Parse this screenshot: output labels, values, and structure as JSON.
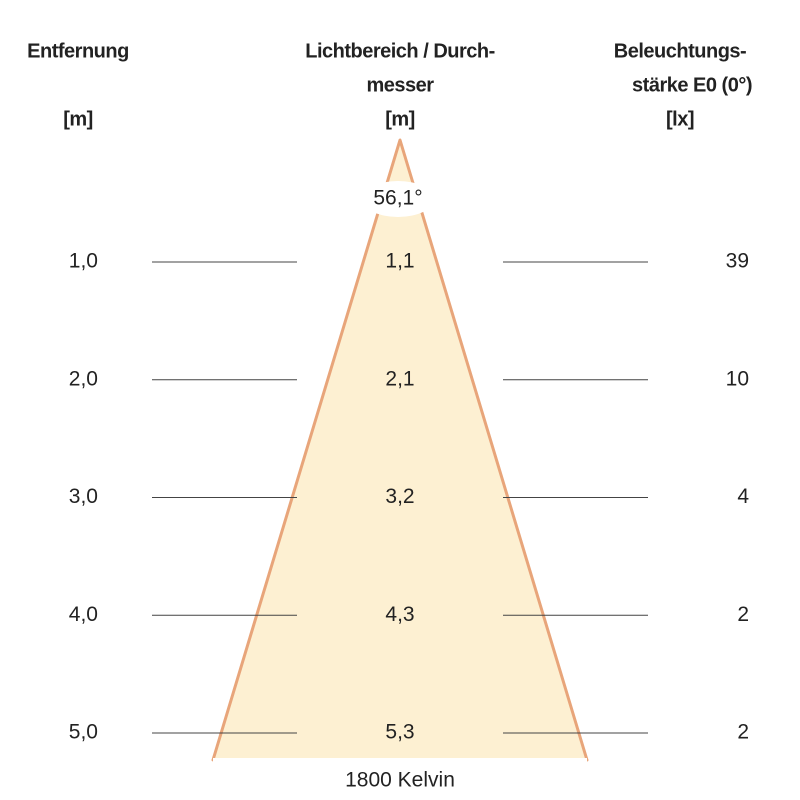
{
  "headers": {
    "distance": {
      "title": "Entfernung",
      "unit": "[m]"
    },
    "diameter": {
      "title": [
        "Lichtbereich / Durch-",
        "messer"
      ],
      "unit": "[m]"
    },
    "illuminance": {
      "title": [
        "Beleuchtungs-",
        "stärke E0 (0°)"
      ],
      "unit": "[lx]"
    }
  },
  "beam_angle": "56,1°",
  "rows": [
    [
      "1,0",
      "1,1",
      "39"
    ],
    [
      "2,0",
      "2,1",
      "10"
    ],
    [
      "3,0",
      "3,2",
      "4"
    ],
    [
      "4,0",
      "4,3",
      "2"
    ],
    [
      "5,0",
      "5,3",
      "2"
    ]
  ],
  "footer": "1800 Kelvin"
}
